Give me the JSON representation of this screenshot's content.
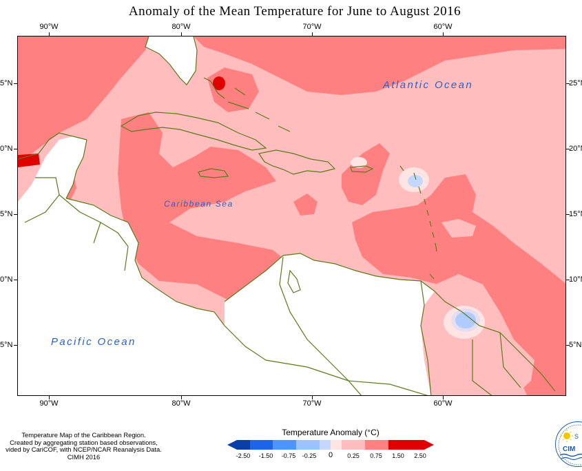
{
  "title": "Anomaly of the Mean Temperature for June to August 2016",
  "map": {
    "lon_ticks_top": [
      "90°W",
      "80°W",
      "70°W",
      "60°W"
    ],
    "lon_ticks_bottom": [
      "90°W",
      "80°W",
      "70°W",
      "60°W"
    ],
    "lat_ticks_left": [
      "5°N",
      "0°N",
      "5°N",
      "0°N",
      "5°N"
    ],
    "lat_ticks_right": [
      "25°N",
      "20°N",
      "15°N",
      "10°N",
      "5°N"
    ],
    "ocean_labels": {
      "atlantic": "Atlantic Ocean",
      "caribbean": "Caribbean Sea",
      "pacific": "Pacific Ocean"
    },
    "colors": {
      "land_outline": "#5a7a1a",
      "ocean_label": "#2a5fc8",
      "anomaly_0_25_to_0_75": "#ffbdbd",
      "anomaly_0_75_to_1_50": "#ff8080",
      "anomaly_1_50_to_2_50": "#e00000",
      "anomaly_0_to_0_25": "#ffe4e4",
      "anomaly_neg_0_25_to_0": "#c4d8ff",
      "anomaly_neg_0_75_to_neg_0_25": "#9ec2ff",
      "non_data_land": "#ffffff"
    }
  },
  "source_note": [
    "Temperature Map of the Caribbean Region.",
    "Created by aggregating station based observations,",
    "vided by CariCOF, with NCEP/NCAR Reanalysis Data.",
    "CIMH 2016"
  ],
  "legend": {
    "title": "Temperature Anomaly (°C)",
    "ticks": [
      "-2.50",
      "-1.50",
      "-0.75",
      "-0.25",
      "0",
      "0.25",
      "0.75",
      "1.50",
      "2.50"
    ],
    "colors": [
      "#0a3fa8",
      "#1d64e8",
      "#4d94ff",
      "#9ec2ff",
      "#c4d8ff",
      "#ffe4e4",
      "#ffbdbd",
      "#ff8080",
      "#e00000"
    ]
  },
  "logo": {
    "text": "CIM",
    "partial_letter": "S"
  }
}
